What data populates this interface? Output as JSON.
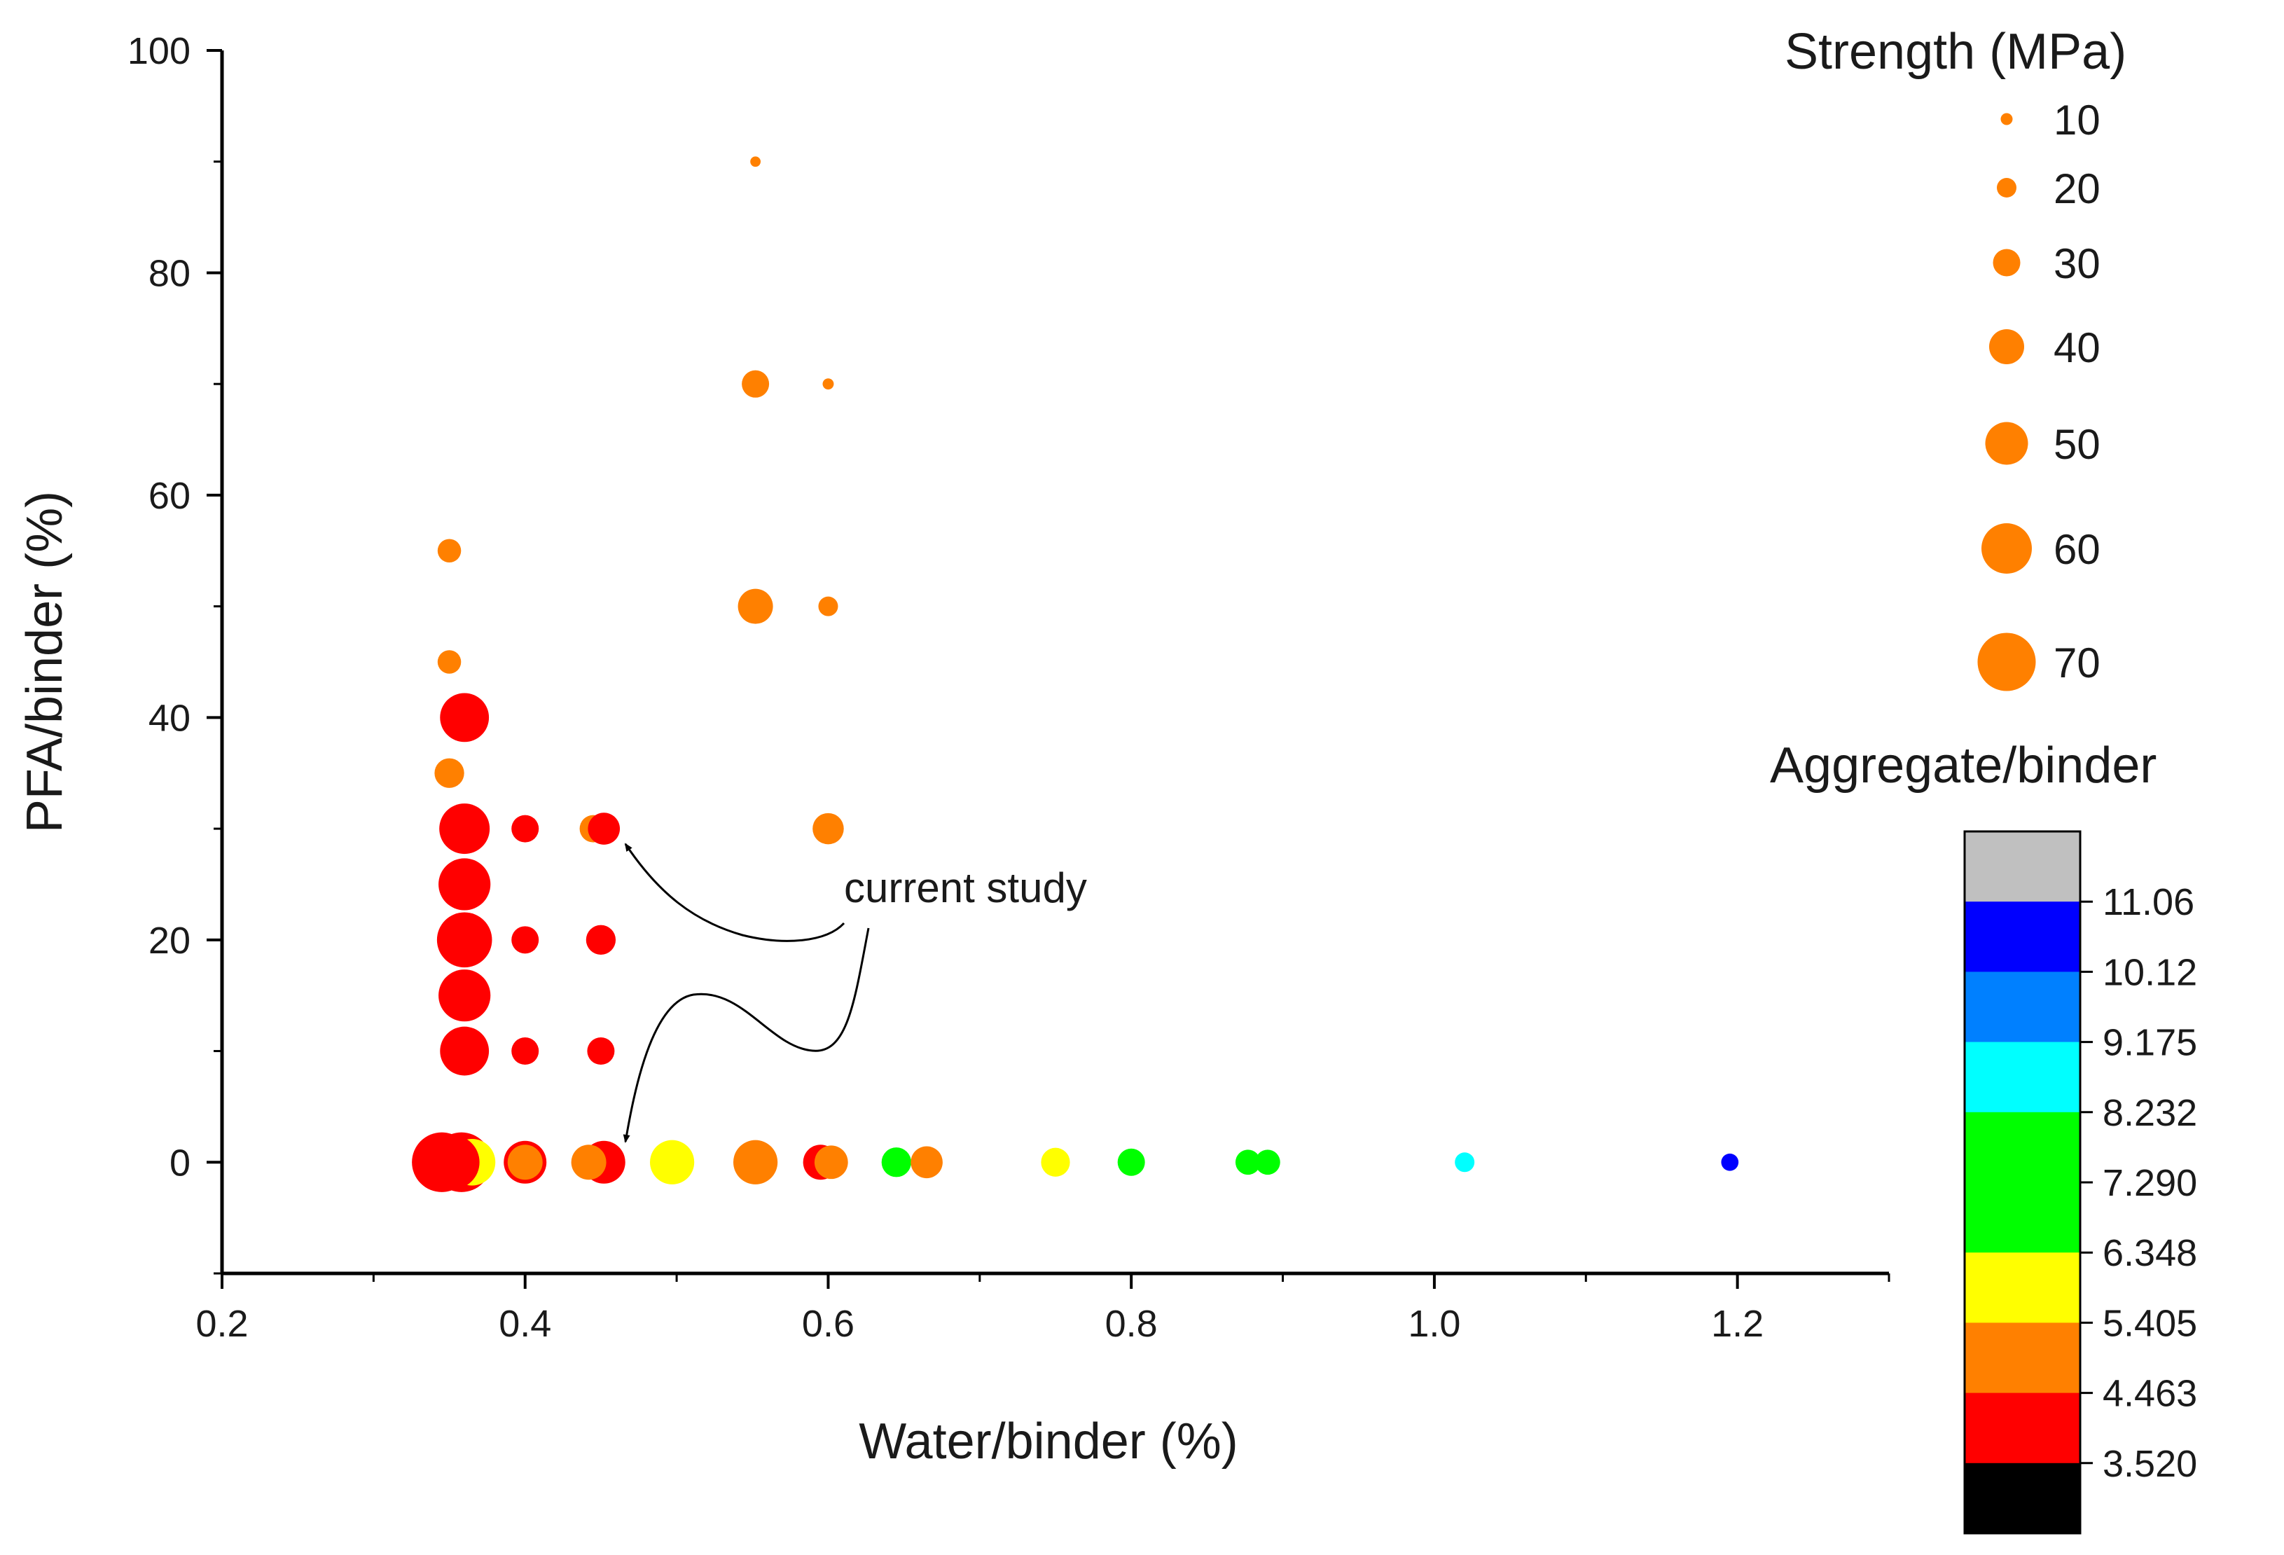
{
  "chart_data": {
    "type": "scatter",
    "title": "",
    "xlabel": "Water/binder (%)",
    "ylabel": "PFA/binder (%)",
    "xlim": [
      0.2,
      1.3
    ],
    "ylim": [
      -10,
      100
    ],
    "xticks": [
      "0.2",
      "0.4",
      "0.6",
      "0.8",
      "1.0",
      "1.2"
    ],
    "yticks": [
      "0",
      "20",
      "40",
      "60",
      "80",
      "100"
    ],
    "size_legend": {
      "title": "Strength (MPa)",
      "entries": [
        {
          "label": "10",
          "value": 10
        },
        {
          "label": "20",
          "value": 20
        },
        {
          "label": "30",
          "value": 30
        },
        {
          "label": "40",
          "value": 40
        },
        {
          "label": "50",
          "value": 50
        },
        {
          "label": "60",
          "value": 60
        },
        {
          "label": "70",
          "value": 70
        }
      ],
      "legend_color": "#ff8000"
    },
    "colorbar": {
      "title": "Aggregate/binder",
      "ticks": [
        "11.06",
        "10.12",
        "9.175",
        "8.232",
        "7.290",
        "6.348",
        "5.405",
        "4.463",
        "3.520"
      ],
      "bands_top_to_bottom": [
        "#c0c0c0",
        "#0000ff",
        "#0080ff",
        "#00ffff",
        "#00ff00",
        "#00ff00",
        "#ffff00",
        "#ff8000",
        "#ff0000",
        "#000000"
      ]
    },
    "annotation": {
      "text": "current study"
    },
    "points": [
      {
        "x": 0.552,
        "y": 90,
        "strength": 8,
        "color": "#ff8000"
      },
      {
        "x": 0.552,
        "y": 70,
        "strength": 30,
        "color": "#ff8000"
      },
      {
        "x": 0.6,
        "y": 70,
        "strength": 9,
        "color": "#ff8000"
      },
      {
        "x": 0.35,
        "y": 55,
        "strength": 25,
        "color": "#ff8000"
      },
      {
        "x": 0.552,
        "y": 50,
        "strength": 40,
        "color": "#ff8000"
      },
      {
        "x": 0.6,
        "y": 50,
        "strength": 20,
        "color": "#ff8000"
      },
      {
        "x": 0.35,
        "y": 45,
        "strength": 25,
        "color": "#ff8000"
      },
      {
        "x": 0.36,
        "y": 40,
        "strength": 58,
        "color": "#ff0000"
      },
      {
        "x": 0.35,
        "y": 35,
        "strength": 33,
        "color": "#ff8000"
      },
      {
        "x": 0.36,
        "y": 30,
        "strength": 60,
        "color": "#ff0000"
      },
      {
        "x": 0.4,
        "y": 30,
        "strength": 30,
        "color": "#ff0000"
      },
      {
        "x": 0.445,
        "y": 30,
        "strength": 30,
        "color": "#ff8000"
      },
      {
        "x": 0.452,
        "y": 30,
        "strength": 36,
        "color": "#ff0000"
      },
      {
        "x": 0.6,
        "y": 30,
        "strength": 35,
        "color": "#ff8000"
      },
      {
        "x": 0.36,
        "y": 25,
        "strength": 62,
        "color": "#ff0000"
      },
      {
        "x": 0.36,
        "y": 20,
        "strength": 66,
        "color": "#ff0000"
      },
      {
        "x": 0.4,
        "y": 20,
        "strength": 30,
        "color": "#ff0000"
      },
      {
        "x": 0.45,
        "y": 20,
        "strength": 33,
        "color": "#ff0000"
      },
      {
        "x": 0.36,
        "y": 15,
        "strength": 62,
        "color": "#ff0000"
      },
      {
        "x": 0.4,
        "y": 10,
        "strength": 30,
        "color": "#ff0000"
      },
      {
        "x": 0.45,
        "y": 10,
        "strength": 30,
        "color": "#ff0000"
      },
      {
        "x": 0.36,
        "y": 10,
        "strength": 58,
        "color": "#ff0000"
      },
      {
        "x": 0.345,
        "y": 0,
        "strength": 72,
        "color": "#ff0000"
      },
      {
        "x": 0.358,
        "y": 0,
        "strength": 72,
        "color": "#ff0000"
      },
      {
        "x": 0.365,
        "y": 0,
        "strength": 55,
        "color": "#ffff00"
      },
      {
        "x": 0.352,
        "y": 0,
        "strength": 65,
        "color": "#ff0000"
      },
      {
        "x": 0.4,
        "y": 0,
        "strength": 50,
        "color": "#ff0000"
      },
      {
        "x": 0.4,
        "y": 0,
        "strength": 40,
        "color": "#ff8000"
      },
      {
        "x": 0.452,
        "y": 0,
        "strength": 50,
        "color": "#ff0000"
      },
      {
        "x": 0.442,
        "y": 0,
        "strength": 40,
        "color": "#ff8000"
      },
      {
        "x": 0.497,
        "y": 0,
        "strength": 52,
        "color": "#ffff00"
      },
      {
        "x": 0.552,
        "y": 0,
        "strength": 52,
        "color": "#ff8000"
      },
      {
        "x": 0.595,
        "y": 0,
        "strength": 40,
        "color": "#ff0000"
      },
      {
        "x": 0.602,
        "y": 0,
        "strength": 38,
        "color": "#ff8000"
      },
      {
        "x": 0.645,
        "y": 0,
        "strength": 33,
        "color": "#00ff00"
      },
      {
        "x": 0.665,
        "y": 0,
        "strength": 36,
        "color": "#ff8000"
      },
      {
        "x": 0.75,
        "y": 0,
        "strength": 32,
        "color": "#ffff00"
      },
      {
        "x": 0.8,
        "y": 0,
        "strength": 30,
        "color": "#00ff00"
      },
      {
        "x": 0.877,
        "y": 0,
        "strength": 27,
        "color": "#00ff00"
      },
      {
        "x": 0.89,
        "y": 0,
        "strength": 27,
        "color": "#00ff00"
      },
      {
        "x": 1.02,
        "y": 0,
        "strength": 20,
        "color": "#00ffff"
      },
      {
        "x": 1.195,
        "y": 0,
        "strength": 17,
        "color": "#0000ff"
      }
    ]
  }
}
